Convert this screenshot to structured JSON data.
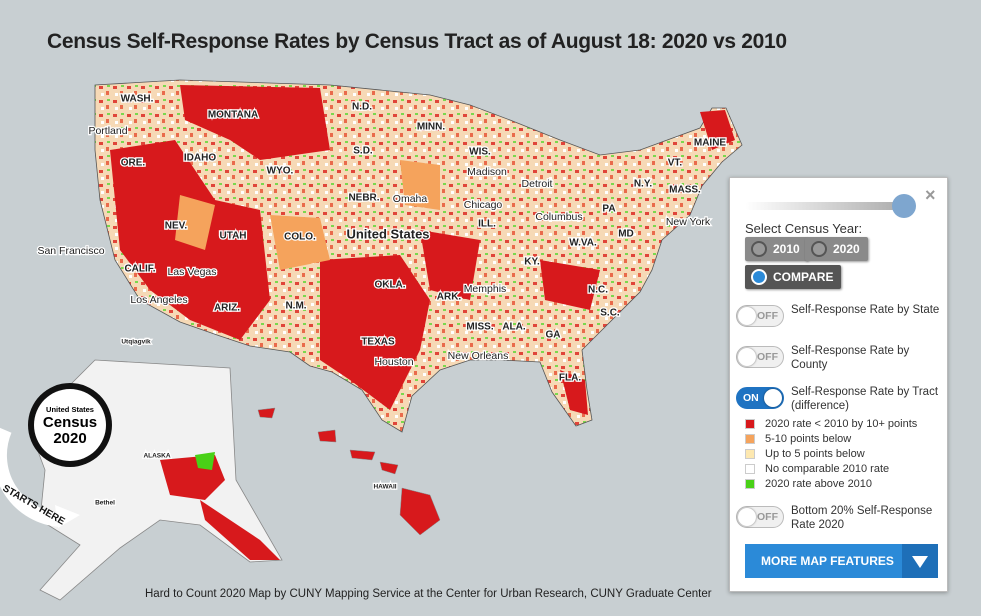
{
  "title": "Census Self-Response Rates by Census Tract as of August 18: 2020 vs 2010",
  "map": {
    "labels": [
      "WASH.",
      "MONTANA",
      "N.D.",
      "MINN.",
      "MAINE",
      "Portland",
      "ORE.",
      "IDAHO",
      "WYO.",
      "S.D.",
      "WIS.",
      "Madison",
      "Detroit",
      "N.Y.",
      "MASS.",
      "VT.",
      "NEBR.",
      "Omaha",
      "Chicago",
      "ILL.",
      "PA",
      "New York",
      "NEV.",
      "UTAH",
      "COLO.",
      "United States",
      "Columbus",
      "W.VA.",
      "MD",
      "San Francisco",
      "CALIF.",
      "Las Vegas",
      "KY.",
      "Los Angeles",
      "OKLA.",
      "ARK.",
      "Memphis",
      "N.C.",
      "N.M.",
      "ARIZ.",
      "MISS.",
      "ALA.",
      "GA",
      "S.C.",
      "TEXAS",
      "Houston",
      "New Orleans",
      "FLA.",
      "Utqiagvik",
      "Bethel",
      "ALASKA",
      "HAWAII"
    ],
    "logo": {
      "line1": "United States",
      "line2": "Census",
      "line3": "2020",
      "tagline": "STARTS HERE"
    }
  },
  "panel": {
    "close": "×",
    "year_prompt": "Select Census Year:",
    "year_options": [
      "2010",
      "2020",
      "COMPARE"
    ],
    "layers": [
      {
        "toggle": "OFF",
        "label": "Self-Response Rate by State"
      },
      {
        "toggle": "OFF",
        "label": "Self-Response Rate by County"
      },
      {
        "toggle": "ON",
        "label": "Self-Response Rate by Tract (difference)"
      }
    ],
    "legend": [
      {
        "label": "2020 rate < 2010 by 10+ points",
        "color": "#d7191c"
      },
      {
        "label": "5-10 points below",
        "color": "#f5a35c"
      },
      {
        "label": "Up to 5 points below",
        "color": "#fde8b0"
      },
      {
        "label": "No comparable 2010 rate",
        "color": "#ffffff"
      },
      {
        "label": "2020 rate above 2010",
        "color": "#49d117"
      }
    ],
    "bottom_layer": {
      "toggle": "OFF",
      "label": "Bottom 20% Self-Response Rate 2020"
    },
    "button": "MORE MAP FEATURES"
  },
  "credit": "Hard to Count 2020 Map by CUNY Mapping Service at the Center for Urban Research, CUNY Graduate Center"
}
